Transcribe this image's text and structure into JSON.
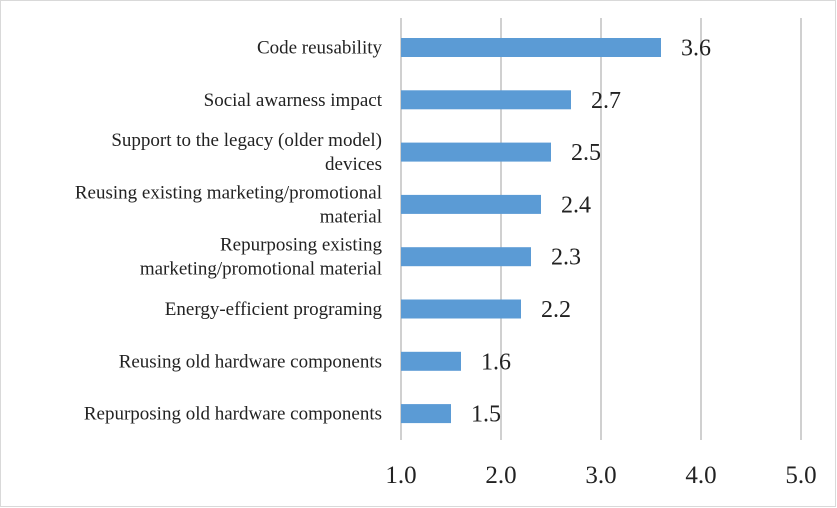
{
  "chart_data": {
    "type": "bar",
    "orientation": "horizontal",
    "categories": [
      [
        "Code reusability"
      ],
      [
        "Social awarness impact"
      ],
      [
        "Support to the legacy (older model)",
        "devices"
      ],
      [
        "Reusing existing marketing/promotional",
        "material"
      ],
      [
        "Repurposing existing",
        "marketing/promotional material"
      ],
      [
        "Energy-efficient programing"
      ],
      [
        "Reusing old hardware components"
      ],
      [
        "Repurposing old hardware components"
      ]
    ],
    "values": [
      3.6,
      2.7,
      2.5,
      2.4,
      2.3,
      2.2,
      1.6,
      1.5
    ],
    "value_labels": [
      "3.6",
      "2.7",
      "2.5",
      "2.4",
      "2.3",
      "2.2",
      "1.6",
      "1.5"
    ],
    "x_ticks": [
      1.0,
      2.0,
      3.0,
      4.0,
      5.0
    ],
    "x_tick_labels": [
      "1.0",
      "2.0",
      "3.0",
      "4.0",
      "5.0"
    ],
    "xlim": [
      1.0,
      5.0
    ],
    "title": "",
    "xlabel": "",
    "ylabel": "",
    "grid": "vertical",
    "legend": "none",
    "bar_color": "#5b9bd5",
    "gridline_color": "#d0d0d0"
  }
}
